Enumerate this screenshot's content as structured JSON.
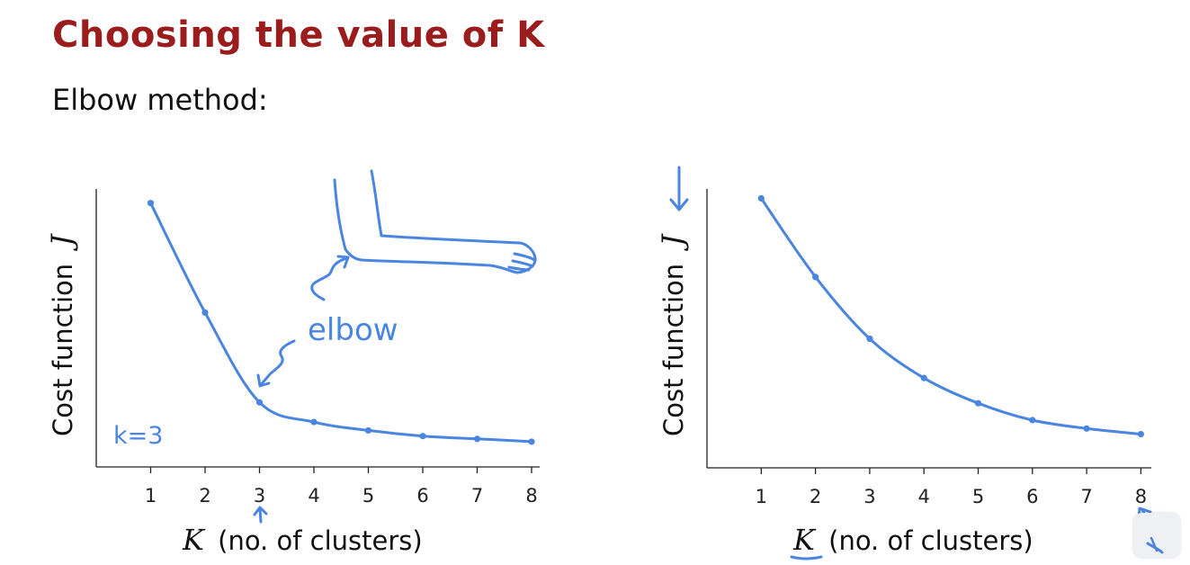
{
  "slide": {
    "title": "Choosing the value of K",
    "subtitle": "Elbow method:"
  },
  "colors": {
    "title": "#9b1c1c",
    "ink": "#4a86e0",
    "axis": "#222222"
  },
  "annotations": {
    "elbow": "elbow",
    "k_choice": "k=3"
  },
  "chart_data": [
    {
      "type": "line",
      "x": [
        1,
        2,
        3,
        4,
        5,
        6,
        7,
        8
      ],
      "y": [
        0.94,
        0.55,
        0.23,
        0.16,
        0.13,
        0.11,
        0.1,
        0.09
      ],
      "xlabel_var": "K",
      "xlabel": "(no. of clusters)",
      "ylabel": "Cost function",
      "ylabel_var": "J",
      "xlim": [
        0,
        8
      ],
      "ylim": [
        0,
        1
      ],
      "grid": false
    },
    {
      "type": "line",
      "x": [
        1,
        2,
        3,
        4,
        5,
        6,
        7,
        8
      ],
      "y": [
        0.96,
        0.68,
        0.46,
        0.32,
        0.23,
        0.17,
        0.14,
        0.12
      ],
      "xlabel_var": "K",
      "xlabel": "(no. of clusters)",
      "ylabel": "Cost function",
      "ylabel_var": "J",
      "xlim": [
        0,
        8
      ],
      "ylim": [
        0,
        1
      ],
      "grid": false
    }
  ]
}
